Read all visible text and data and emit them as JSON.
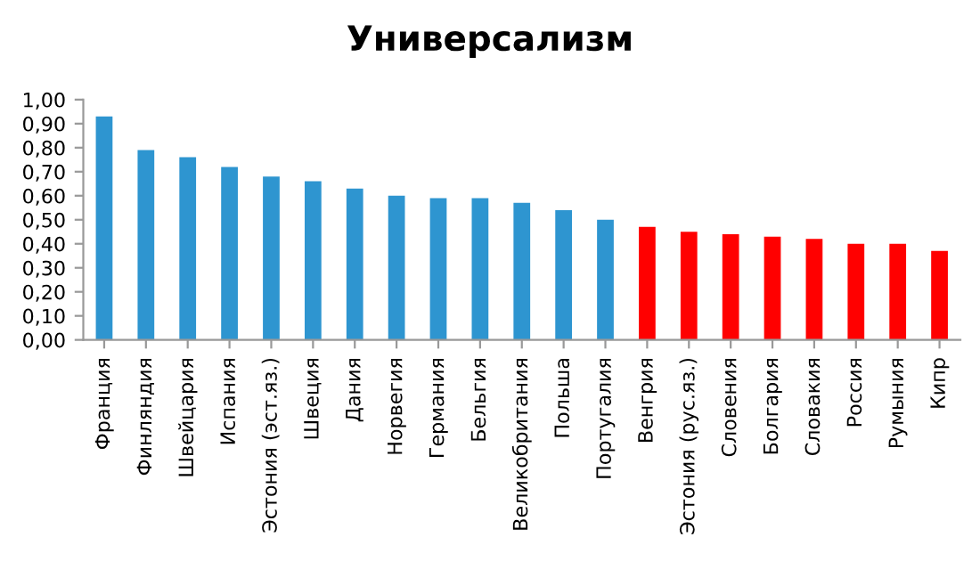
{
  "chart_data": {
    "type": "bar",
    "title": "Универсализм",
    "categories": [
      "Франция",
      "Финляндия",
      "Швейцария",
      "Испания",
      "Эстония (эст.яз.)",
      "Швеция",
      "Дания",
      "Норвегия",
      "Германия",
      "Бельгия",
      "Великобритания",
      "Польша",
      "Португалия",
      "Венгрия",
      "Эстония (рус.яз.)",
      "Словения",
      "Болгария",
      "Словакия",
      "Россия",
      "Румыния",
      "Кипр"
    ],
    "values": [
      0.93,
      0.79,
      0.76,
      0.72,
      0.68,
      0.66,
      0.63,
      0.6,
      0.59,
      0.59,
      0.57,
      0.54,
      0.5,
      0.47,
      0.45,
      0.44,
      0.43,
      0.42,
      0.4,
      0.4,
      0.37
    ],
    "colors": [
      "#2e95d0",
      "#2e95d0",
      "#2e95d0",
      "#2e95d0",
      "#2e95d0",
      "#2e95d0",
      "#2e95d0",
      "#2e95d0",
      "#2e95d0",
      "#2e95d0",
      "#2e95d0",
      "#2e95d0",
      "#2e95d0",
      "#ff0000",
      "#ff0000",
      "#ff0000",
      "#ff0000",
      "#ff0000",
      "#ff0000",
      "#ff0000",
      "#ff0000"
    ],
    "ylim": [
      0,
      1
    ],
    "yticks": [
      {
        "value": 0,
        "label": "0,00"
      },
      {
        "value": 0.1,
        "label": "0,10"
      },
      {
        "value": 0.2,
        "label": "0,20"
      },
      {
        "value": 0.3,
        "label": "0,30"
      },
      {
        "value": 0.4,
        "label": "0,40"
      },
      {
        "value": 0.5,
        "label": "0,50"
      },
      {
        "value": 0.6,
        "label": "0,60"
      },
      {
        "value": 0.7,
        "label": "0,70"
      },
      {
        "value": 0.8,
        "label": "0,80"
      },
      {
        "value": 0.9,
        "label": "0,90"
      },
      {
        "value": 1,
        "label": "1,00"
      }
    ],
    "grid": false
  }
}
